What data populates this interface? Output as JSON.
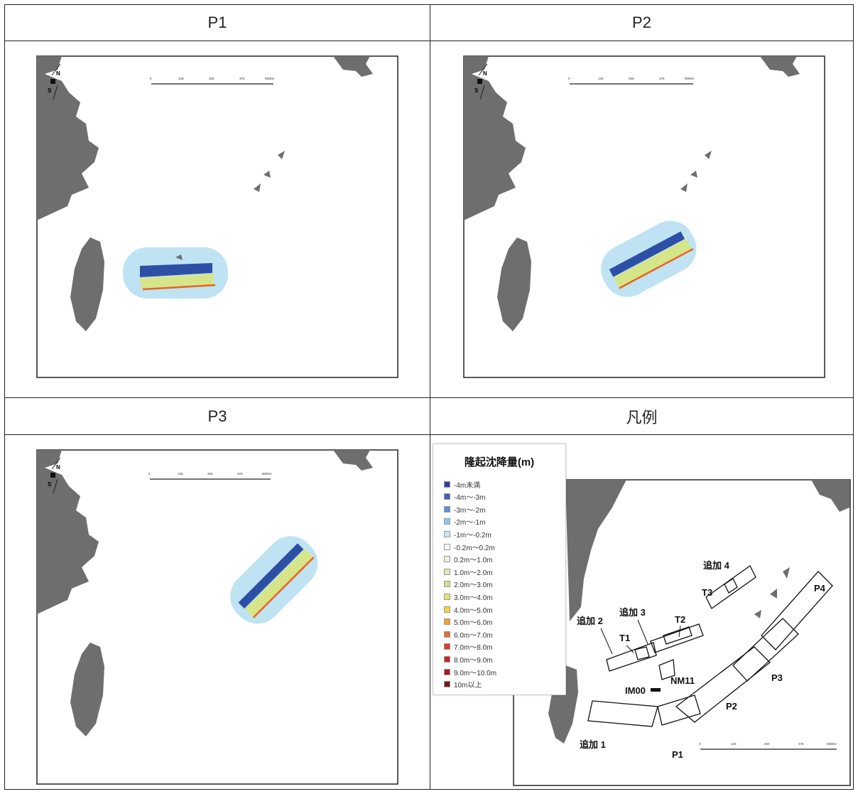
{
  "headers": {
    "p1": "P1",
    "p2": "P2",
    "p3": "P3",
    "legend": "凡例"
  },
  "compass": {
    "north": "N",
    "south": "S"
  },
  "scale": {
    "ticks": [
      "0",
      "125",
      "250",
      "375",
      "500km"
    ]
  },
  "legend": {
    "title": "隆起沈降量(m)",
    "items": [
      {
        "label": "-4m未満",
        "color": "#2d3f9e"
      },
      {
        "label": "-4m～-3m",
        "color": "#3d5fb8"
      },
      {
        "label": "-3m～-2m",
        "color": "#5b8fd0"
      },
      {
        "label": "-2m～-1m",
        "color": "#8ec5ea"
      },
      {
        "label": "-1m～-0.2m",
        "color": "#c9e7f6"
      },
      {
        "label": "-0.2m～0.2m",
        "color": "#ffffff"
      },
      {
        "label": "0.2m～1.0m",
        "color": "#eef0dc"
      },
      {
        "label": "1.0m～2.0m",
        "color": "#dde8b8"
      },
      {
        "label": "2.0m～3.0m",
        "color": "#cbe08f"
      },
      {
        "label": "3.0m～4.0m",
        "color": "#e2e66a"
      },
      {
        "label": "4.0m～5.0m",
        "color": "#f4d23c"
      },
      {
        "label": "5.0m～6.0m",
        "color": "#f1a23a"
      },
      {
        "label": "6.0m～7.0m",
        "color": "#e96a2c"
      },
      {
        "label": "7.0m～8.0m",
        "color": "#e23a2a"
      },
      {
        "label": "8.0m～9.0m",
        "color": "#c82424"
      },
      {
        "label": "9.0m～10.0m",
        "color": "#a41c1c"
      },
      {
        "label": "10m以上",
        "color": "#7a1414"
      }
    ]
  },
  "fault_labels": {
    "add1": "追加 1",
    "add2": "追加 2",
    "add3": "追加 3",
    "add4": "追加 4",
    "t1": "T1",
    "t2": "T2",
    "t3": "T3",
    "p1": "P1",
    "p2": "P2",
    "p3": "P3",
    "p4": "P4",
    "nm11": "NM11",
    "im00": "IM00"
  },
  "colors": {
    "land": "#6e6e6e",
    "deep": "#2d4fa6",
    "shallow": "#bfe3f3",
    "uplift": "#d6e58a",
    "edge": "#e8641e"
  }
}
